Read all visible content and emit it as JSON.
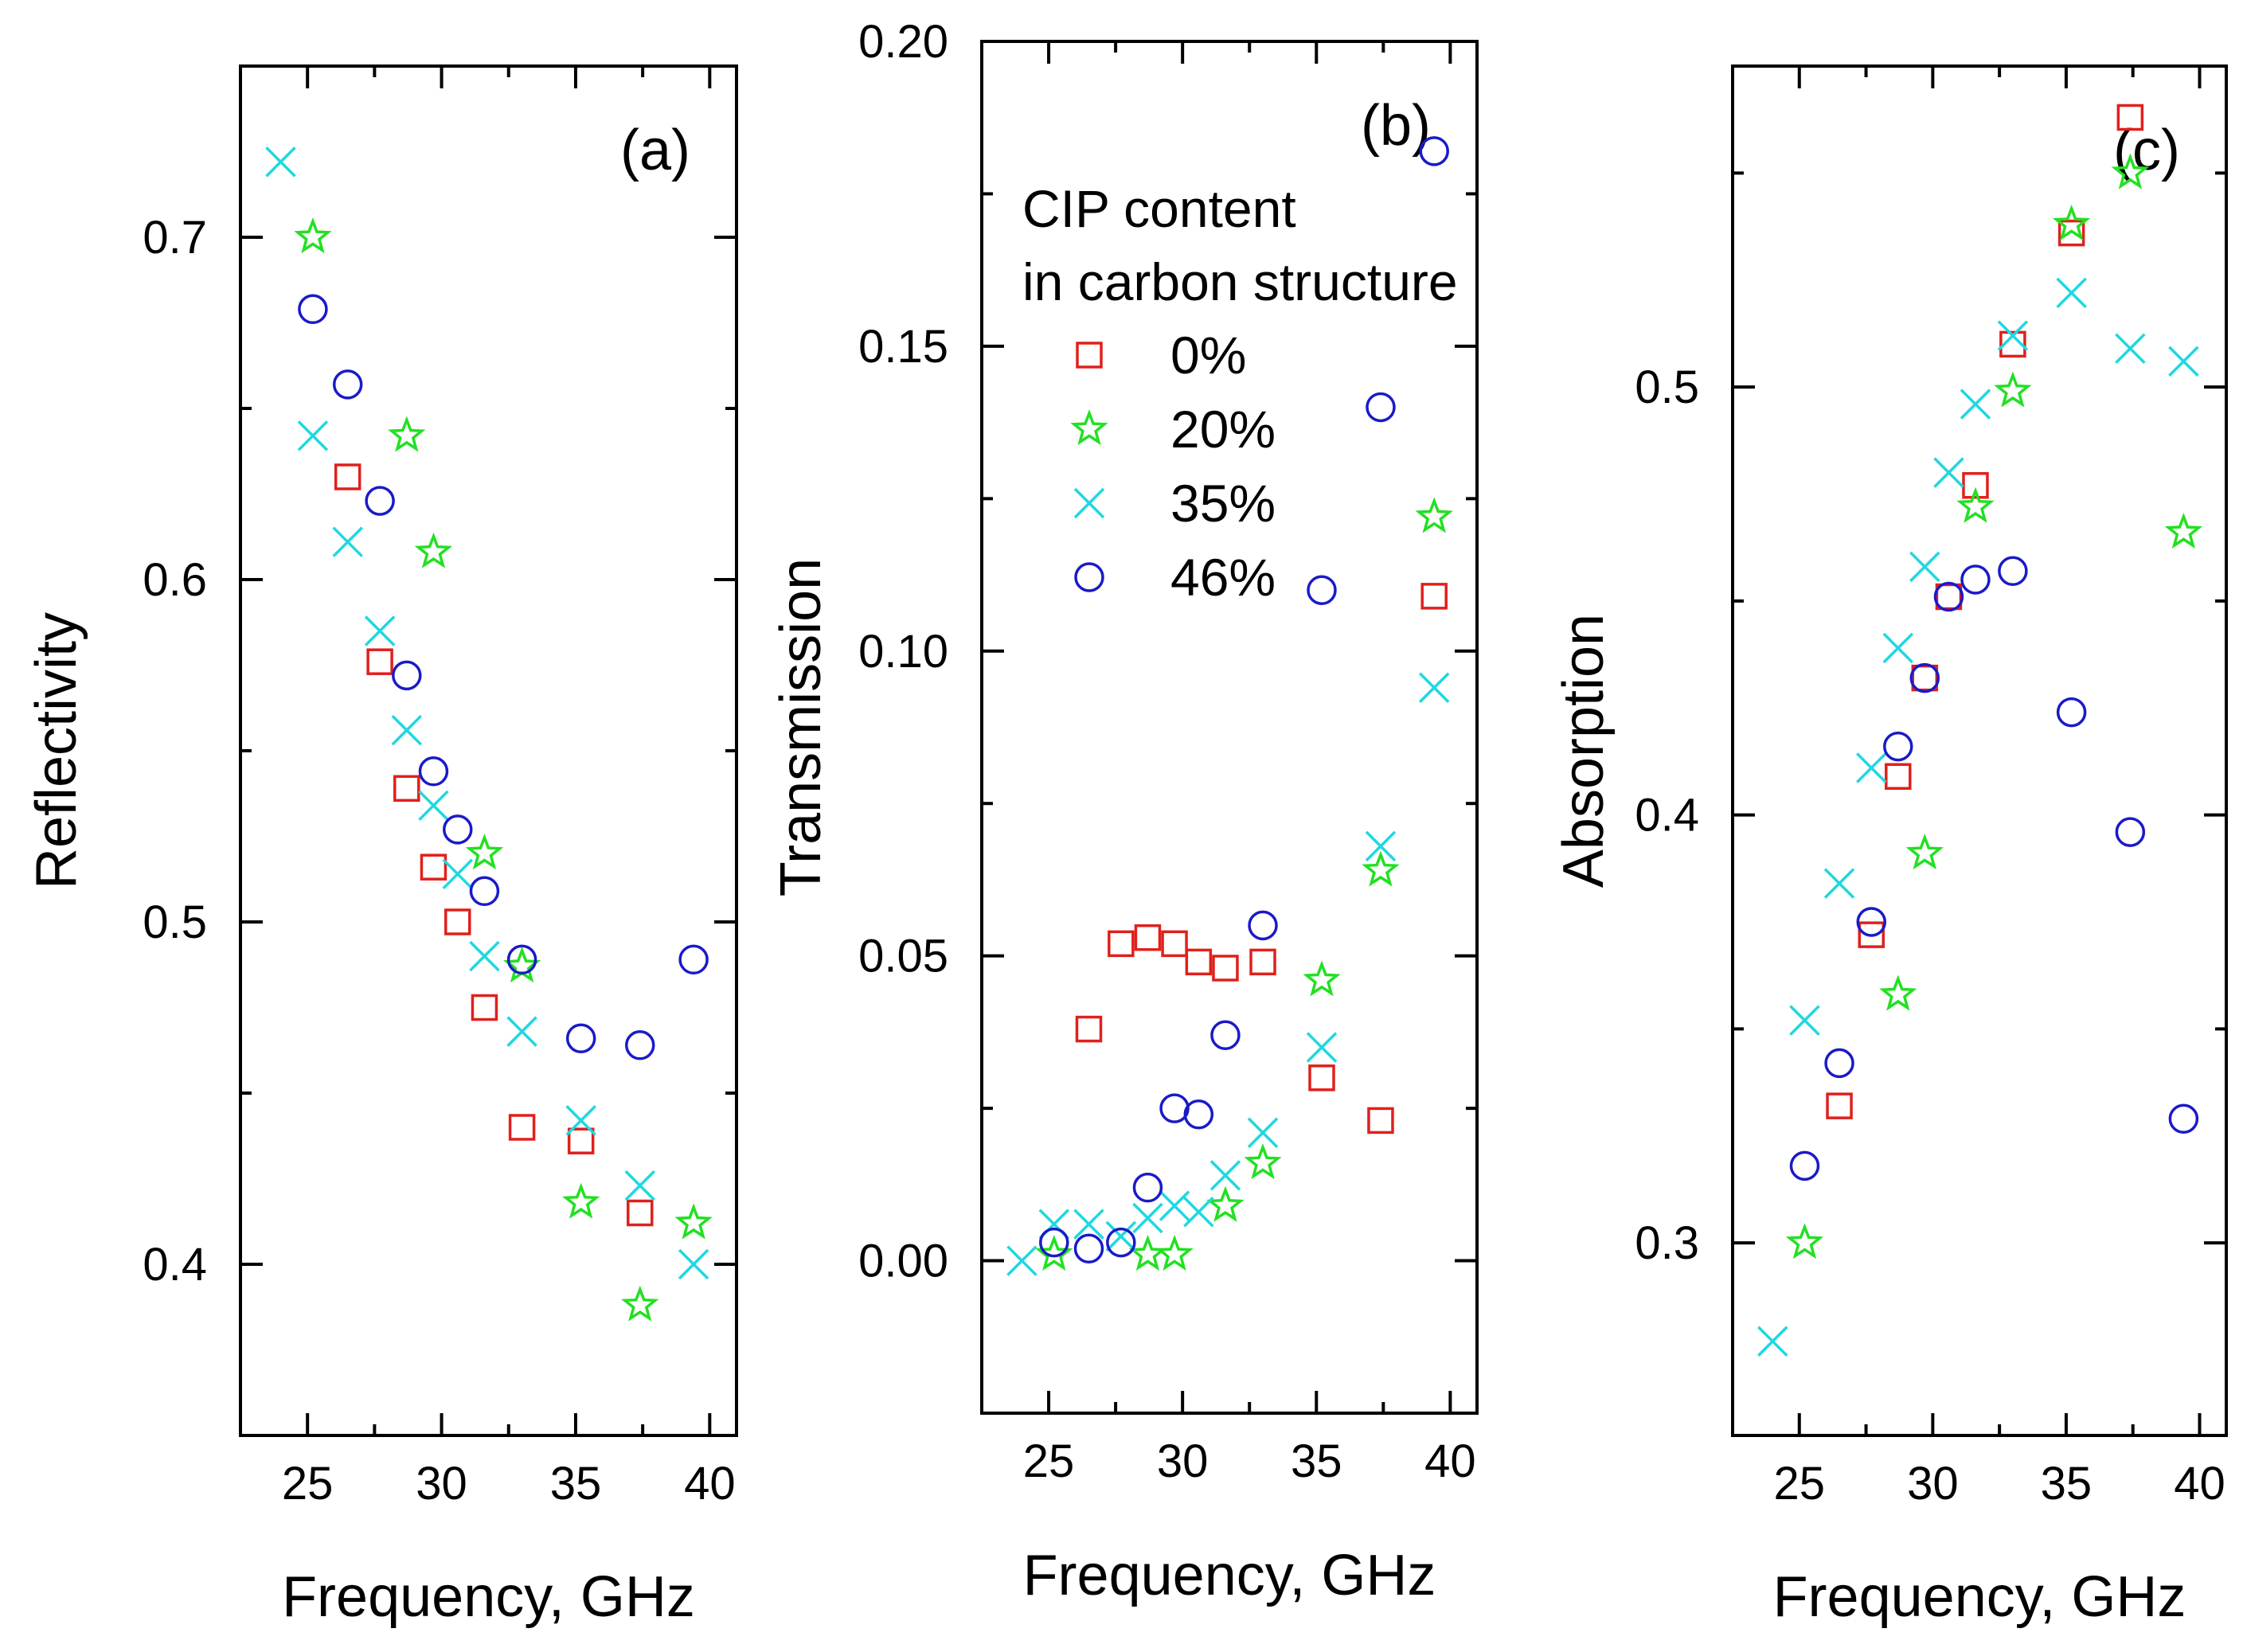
{
  "colors": {
    "s0": "#e0201c",
    "s1": "#22e022",
    "s2": "#1fd8e0",
    "s3": "#1a1ac8"
  },
  "legend": {
    "title_line1": "CIP content",
    "title_line2": "in carbon structure",
    "entries": [
      {
        "label": "0%",
        "marker": "square",
        "color": "#e0201c"
      },
      {
        "label": "20%",
        "marker": "star",
        "color": "#22e022"
      },
      {
        "label": "35%",
        "marker": "x",
        "color": "#1fd8e0"
      },
      {
        "label": "46%",
        "marker": "circle",
        "color": "#1a1ac8"
      }
    ]
  },
  "chart_data": [
    {
      "type": "scatter",
      "panel_label": "(a)",
      "xlabel": "Frequency, GHz",
      "ylabel": "Reflectivity",
      "xlim": [
        22.5,
        41.0
      ],
      "ylim": [
        0.35,
        0.75
      ],
      "xticks": [
        25,
        30,
        35,
        40
      ],
      "yticks": [
        0.4,
        0.5,
        0.6,
        0.7
      ],
      "series": [
        {
          "name": "0%",
          "marker": "square",
          "x": [
            26.5,
            27.7,
            28.7,
            29.7,
            30.6,
            31.6,
            33.0,
            35.2,
            37.4
          ],
          "y": [
            0.63,
            0.576,
            0.539,
            0.516,
            0.5,
            0.475,
            0.44,
            0.436,
            0.415
          ]
        },
        {
          "name": "20%",
          "marker": "star",
          "x": [
            25.2,
            28.7,
            29.7,
            31.6,
            33.0,
            35.2,
            37.4,
            39.4
          ],
          "y": [
            0.7,
            0.642,
            0.608,
            0.52,
            0.487,
            0.418,
            0.388,
            0.412
          ]
        },
        {
          "name": "35%",
          "marker": "x",
          "x": [
            24.0,
            25.2,
            26.5,
            27.7,
            28.7,
            29.7,
            30.6,
            31.6,
            33.0,
            35.2,
            37.4,
            39.4
          ],
          "y": [
            0.722,
            0.642,
            0.611,
            0.585,
            0.556,
            0.534,
            0.514,
            0.49,
            0.468,
            0.442,
            0.423,
            0.4
          ]
        },
        {
          "name": "46%",
          "marker": "circle",
          "x": [
            25.2,
            26.5,
            27.7,
            28.7,
            29.7,
            30.6,
            31.6,
            33.0,
            35.2,
            37.4,
            39.4
          ],
          "y": [
            0.679,
            0.657,
            0.623,
            0.572,
            0.544,
            0.527,
            0.509,
            0.489,
            0.466,
            0.464,
            0.489
          ]
        }
      ]
    },
    {
      "type": "scatter",
      "panel_label": "(b)",
      "xlabel": "Frequency, GHz",
      "ylabel": "Transmission",
      "xlim": [
        22.5,
        41.0
      ],
      "ylim": [
        -0.025,
        0.2
      ],
      "xticks": [
        25,
        30,
        35,
        40
      ],
      "yticks": [
        0.0,
        0.05,
        0.1,
        0.15,
        0.2
      ],
      "ytick_labels": [
        "0.00",
        "0.05",
        "0.10",
        "0.15",
        "0.20"
      ],
      "series": [
        {
          "name": "0%",
          "marker": "square",
          "x": [
            26.5,
            27.7,
            28.7,
            29.7,
            30.6,
            31.6,
            33.0,
            35.2,
            37.4,
            39.4
          ],
          "y": [
            0.038,
            0.052,
            0.053,
            0.052,
            0.049,
            0.048,
            0.049,
            0.03,
            0.023,
            0.109
          ]
        },
        {
          "name": "20%",
          "marker": "star",
          "x": [
            25.2,
            28.7,
            29.7,
            31.6,
            33.0,
            35.2,
            37.4,
            39.4
          ],
          "y": [
            0.001,
            0.001,
            0.001,
            0.009,
            0.016,
            0.046,
            0.064,
            0.122
          ]
        },
        {
          "name": "35%",
          "marker": "x",
          "x": [
            24.0,
            25.2,
            26.5,
            27.7,
            28.7,
            29.7,
            30.6,
            31.6,
            33.0,
            35.2,
            37.4,
            39.4
          ],
          "y": [
            0.0,
            0.006,
            0.006,
            0.004,
            0.007,
            0.009,
            0.008,
            0.014,
            0.021,
            0.035,
            0.068,
            0.094
          ]
        },
        {
          "name": "46%",
          "marker": "circle",
          "x": [
            25.2,
            26.5,
            27.7,
            28.7,
            29.7,
            30.6,
            31.6,
            33.0,
            35.2,
            37.4,
            39.4
          ],
          "y": [
            0.003,
            0.002,
            0.003,
            0.012,
            0.025,
            0.024,
            0.037,
            0.055,
            0.11,
            0.14,
            0.182
          ]
        }
      ]
    },
    {
      "type": "scatter",
      "panel_label": "(c)",
      "xlabel": "Frequency, GHz",
      "ylabel": "Absorption",
      "xlim": [
        22.5,
        41.0
      ],
      "ylim": [
        0.255,
        0.575
      ],
      "xticks": [
        25,
        30,
        35,
        40
      ],
      "yticks": [
        0.3,
        0.4,
        0.5
      ],
      "series": [
        {
          "name": "0%",
          "marker": "square",
          "x": [
            26.5,
            27.7,
            28.7,
            29.7,
            30.6,
            31.6,
            33.0,
            35.2,
            37.4
          ],
          "y": [
            0.332,
            0.372,
            0.409,
            0.432,
            0.451,
            0.477,
            0.51,
            0.536,
            0.563
          ]
        },
        {
          "name": "20%",
          "marker": "star",
          "x": [
            25.2,
            28.7,
            29.7,
            31.6,
            33.0,
            35.2,
            37.4,
            39.4
          ],
          "y": [
            0.3,
            0.358,
            0.391,
            0.472,
            0.499,
            0.538,
            0.55,
            0.466
          ]
        },
        {
          "name": "35%",
          "marker": "x",
          "x": [
            24.0,
            25.2,
            26.5,
            27.7,
            28.7,
            29.7,
            30.6,
            31.6,
            33.0,
            35.2,
            37.4,
            39.4
          ],
          "y": [
            0.277,
            0.352,
            0.384,
            0.411,
            0.439,
            0.458,
            0.48,
            0.496,
            0.512,
            0.522,
            0.509,
            0.506
          ]
        },
        {
          "name": "46%",
          "marker": "circle",
          "x": [
            25.2,
            26.5,
            27.7,
            28.7,
            29.7,
            30.6,
            31.6,
            33.0,
            35.2,
            37.4,
            39.4
          ],
          "y": [
            0.318,
            0.342,
            0.375,
            0.416,
            0.432,
            0.451,
            0.455,
            0.457,
            0.424,
            0.396,
            0.329
          ]
        }
      ]
    }
  ]
}
